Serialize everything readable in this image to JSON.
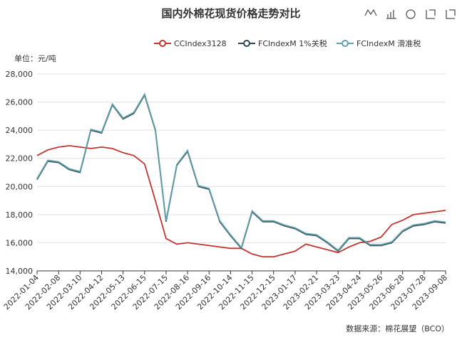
{
  "chart_data": {
    "type": "line",
    "title": "国内外棉花现货价格走势对比",
    "y_unit_label": "单位：元/吨",
    "source": "数据来源：棉花展望（BCO）",
    "x": [
      "2022-01-04",
      "2022-01-21",
      "2022-02-08",
      "2022-02-23",
      "2022-03-10",
      "2022-03-25",
      "2022-04-12",
      "2022-04-27",
      "2022-05-13",
      "2022-05-30",
      "2022-06-15",
      "2022-06-30",
      "2022-07-15",
      "2022-07-31",
      "2022-08-16",
      "2022-08-31",
      "2022-09-16",
      "2022-09-30",
      "2022-10-14",
      "2022-10-31",
      "2022-11-15",
      "2022-11-30",
      "2022-12-15",
      "2022-12-31",
      "2023-01-17",
      "2023-02-03",
      "2023-02-21",
      "2023-03-08",
      "2023-03-23",
      "2023-04-08",
      "2023-04-24",
      "2023-05-10",
      "2023-05-26",
      "2023-06-12",
      "2023-06-28",
      "2023-07-13",
      "2023-07-28",
      "2023-08-18",
      "2023-09-08"
    ],
    "xticks": [
      "2022-01-04",
      "2022-02-08",
      "2022-03-10",
      "2022-04-12",
      "2022-05-13",
      "2022-06-15",
      "2022-07-15",
      "2022-08-16",
      "2022-09-16",
      "2022-10-14",
      "2022-11-15",
      "2022-12-15",
      "2023-01-17",
      "2023-02-21",
      "2023-03-23",
      "2023-04-24",
      "2023-05-26",
      "2023-06-28",
      "2023-07-28",
      "2023-09-08"
    ],
    "ylim": [
      14000,
      28000
    ],
    "yticks": [
      {
        "value": 14000,
        "label": "14,000"
      },
      {
        "value": 16000,
        "label": "16,000"
      },
      {
        "value": 18000,
        "label": "18,000"
      },
      {
        "value": 20000,
        "label": "20,000"
      },
      {
        "value": 22000,
        "label": "22,000"
      },
      {
        "value": 24000,
        "label": "24,000"
      },
      {
        "value": 26000,
        "label": "26,000"
      },
      {
        "value": 28000,
        "label": "28,000"
      }
    ],
    "grid": true,
    "series": [
      {
        "name": "CCIndex3128",
        "color": "#c23531",
        "values": [
          22200,
          22600,
          22800,
          22900,
          22800,
          22700,
          22800,
          22700,
          22400,
          22200,
          21600,
          19000,
          16300,
          15900,
          16000,
          15900,
          15800,
          15700,
          15600,
          15600,
          15200,
          15000,
          15000,
          15200,
          15400,
          15900,
          15700,
          15500,
          15300,
          15700,
          16000,
          16100,
          16400,
          17300,
          17600,
          18000,
          18100,
          18200,
          18300
        ]
      },
      {
        "name": "FCIndexM 1%关税",
        "color": "#2f4554",
        "values": [
          20500,
          21800,
          21700,
          21200,
          21000,
          24000,
          23800,
          25800,
          24800,
          25200,
          26500,
          24000,
          17500,
          21500,
          22500,
          20000,
          19800,
          17500,
          16500,
          15600,
          18200,
          17500,
          17500,
          17200,
          17000,
          16600,
          16500,
          16000,
          15400,
          16300,
          16300,
          15800,
          15800,
          16000,
          16800,
          17200,
          17300,
          17500,
          17400
        ]
      },
      {
        "name": "FCIndexM 滑准税",
        "color": "#61a0a8",
        "values": [
          20560,
          21860,
          21760,
          21260,
          21060,
          24060,
          23860,
          25860,
          24860,
          25260,
          26560,
          24060,
          17560,
          21560,
          22560,
          20060,
          19860,
          17560,
          16560,
          15660,
          18260,
          17560,
          17560,
          17260,
          17060,
          16660,
          16560,
          16060,
          15460,
          16360,
          16360,
          15860,
          15860,
          16060,
          16860,
          17260,
          17360,
          17560,
          17460
        ]
      }
    ]
  }
}
